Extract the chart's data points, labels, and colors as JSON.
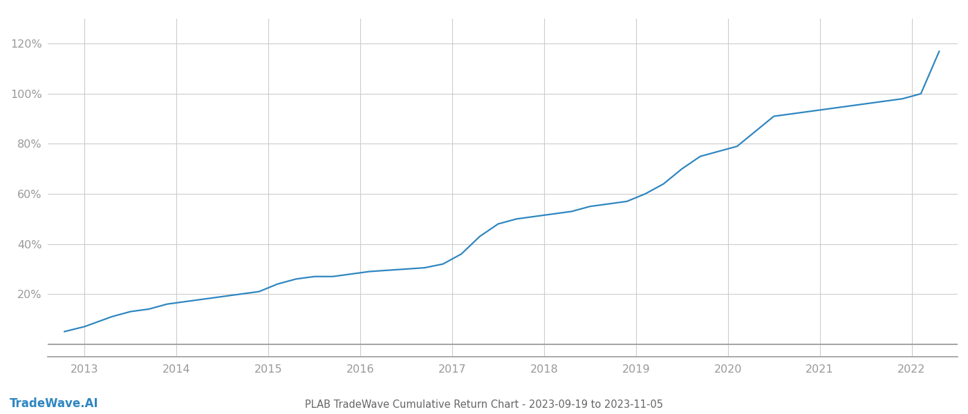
{
  "title": "PLAB TradeWave Cumulative Return Chart - 2023-09-19 to 2023-11-05",
  "watermark": "TradeWave.AI",
  "line_color": "#2e86c1",
  "background_color": "#ffffff",
  "grid_color": "#cccccc",
  "x_years": [
    2013,
    2014,
    2015,
    2016,
    2017,
    2018,
    2019,
    2020,
    2021,
    2022
  ],
  "x_values": [
    2012.78,
    2013.0,
    2013.15,
    2013.3,
    2013.5,
    2013.7,
    2013.9,
    2014.1,
    2014.3,
    2014.5,
    2014.7,
    2014.9,
    2015.1,
    2015.3,
    2015.5,
    2015.7,
    2015.9,
    2016.1,
    2016.3,
    2016.5,
    2016.7,
    2016.9,
    2017.1,
    2017.3,
    2017.5,
    2017.7,
    2017.9,
    2018.1,
    2018.3,
    2018.5,
    2018.7,
    2018.9,
    2019.1,
    2019.3,
    2019.5,
    2019.7,
    2019.9,
    2020.1,
    2020.3,
    2020.5,
    2020.7,
    2020.9,
    2021.1,
    2021.3,
    2021.5,
    2021.7,
    2021.9,
    2022.1,
    2022.3
  ],
  "y_values": [
    5,
    7,
    9,
    11,
    13,
    14,
    16,
    17,
    18,
    19,
    20,
    21,
    24,
    26,
    27,
    27,
    28,
    29,
    29.5,
    30,
    30.5,
    32,
    36,
    43,
    48,
    50,
    51,
    52,
    53,
    55,
    56,
    57,
    60,
    64,
    70,
    75,
    77,
    79,
    85,
    91,
    92,
    93,
    94,
    95,
    96,
    97,
    98,
    100,
    117
  ],
  "ylim": [
    -5,
    130
  ],
  "yticks": [
    20,
    40,
    60,
    80,
    100,
    120
  ],
  "extra_gridlines": [
    0
  ],
  "xlim": [
    2012.6,
    2022.5
  ],
  "title_fontsize": 10.5,
  "tick_fontsize": 11.5,
  "watermark_fontsize": 12,
  "line_width": 1.6,
  "axis_color": "#999999",
  "tick_color": "#999999",
  "title_color": "#666666",
  "watermark_color": "#2e86c1"
}
